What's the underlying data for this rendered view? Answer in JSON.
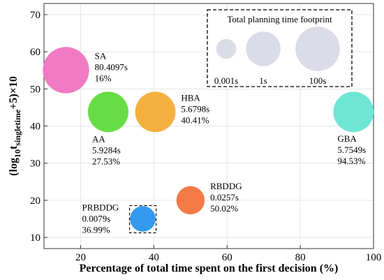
{
  "chart_data": {
    "type": "scatter",
    "subtype": "bubble",
    "xlabel": "Percentage of total time spent on the first decision (%)",
    "ylabel": {
      "prefix": "(log",
      "sub1": "10",
      "mid": "t",
      "sub2": "singletime",
      "suffix": "+5)×10"
    },
    "xlim": [
      10,
      100
    ],
    "ylim": [
      7,
      73
    ],
    "xticks": [
      "20",
      "40",
      "60",
      "80",
      "100"
    ],
    "yticks": [
      "10",
      "20",
      "30",
      "40",
      "50",
      "60",
      "70"
    ],
    "grid": true,
    "points": [
      {
        "name": "SA",
        "x": 16,
        "y": 55.05,
        "time_label": "80.4097s",
        "pct_label": "16%",
        "color": "#F07AC3",
        "time_s": 80.4097,
        "label_pos": "right"
      },
      {
        "name": "AA",
        "x": 27.53,
        "y": 43.8,
        "time_label": "5.9284s",
        "pct_label": "27.53%",
        "color": "#66DD44",
        "time_s": 5.9284,
        "label_pos": "below"
      },
      {
        "name": "HBA",
        "x": 40.41,
        "y": 43.8,
        "time_label": "5.6798s",
        "pct_label": "40.41%",
        "color": "#F5B040",
        "time_s": 5.6798,
        "label_pos": "right"
      },
      {
        "name": "GBA",
        "x": 94.53,
        "y": 43.8,
        "time_label": "5.7549s",
        "pct_label": "94.53%",
        "color": "#6EE5D5",
        "time_s": 5.7549,
        "label_pos": "below"
      },
      {
        "name": "RBDDG",
        "x": 50.02,
        "y": 20,
        "time_label": "0.0257s",
        "pct_label": "50.02%",
        "color": "#F57A48",
        "time_s": 0.0257,
        "label_pos": "right"
      },
      {
        "name": "PRBDDG",
        "x": 36.99,
        "y": 15,
        "time_label": "0.0079s",
        "pct_label": "36.99%",
        "color": "#3399EE",
        "time_s": 0.0079,
        "label_pos": "left-boxed"
      }
    ],
    "legend": {
      "title": "Total planning time footprint",
      "position": "top-right",
      "color": "#DCDCE8",
      "items": [
        {
          "label": "0.001s",
          "time_s": 0.001
        },
        {
          "label": "1s",
          "time_s": 1
        },
        {
          "label": "100s",
          "time_s": 100
        }
      ]
    }
  }
}
